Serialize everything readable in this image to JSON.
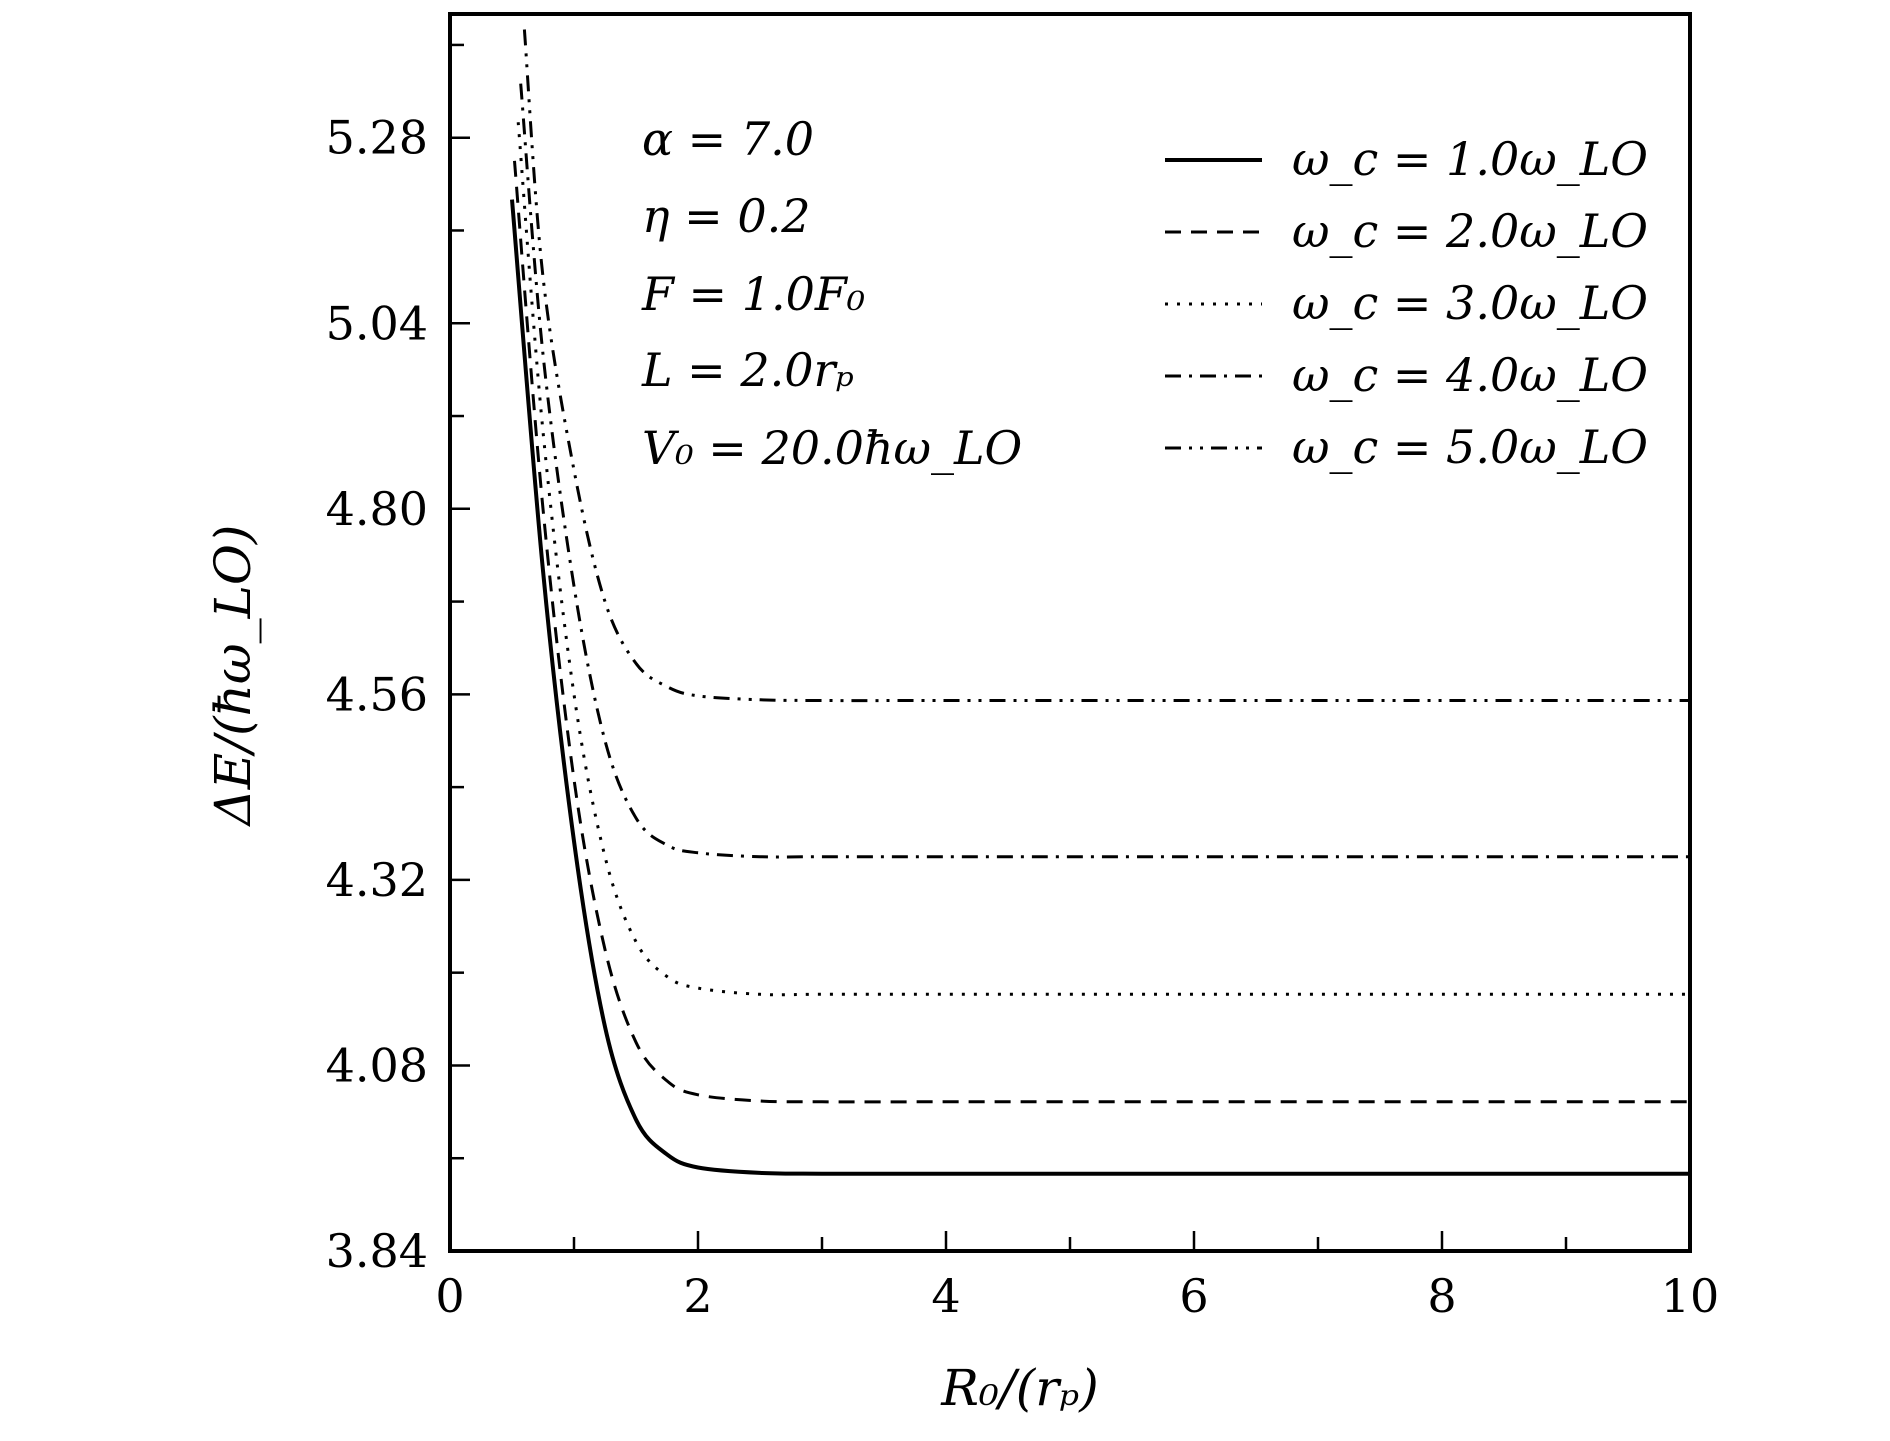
{
  "chart_data": {
    "type": "line",
    "xlabel": "R₀/(rₚ)",
    "ylabel": "ΔE/(ħω_LO)",
    "xlim": [
      0,
      10
    ],
    "ylim": [
      3.84,
      5.44
    ],
    "x_ticks": [
      0,
      2,
      4,
      6,
      8,
      10
    ],
    "y_ticks": [
      3.84,
      4.08,
      4.32,
      4.56,
      4.8,
      5.04,
      5.28
    ],
    "x_tick_labels": [
      "0",
      "2",
      "4",
      "6",
      "8",
      "10"
    ],
    "y_tick_labels": [
      "3.84",
      "4.08",
      "4.32",
      "4.56",
      "4.80",
      "5.04",
      "5.28"
    ],
    "grid": false,
    "legend_position": "top-right",
    "annotations": [
      "α = 7.0",
      "η = 0.2",
      "F = 1.0F₀",
      "L = 2.0rₚ",
      "V₀ = 20.0ħω_LO"
    ],
    "series": [
      {
        "name": "ω_c = 1.0ω_LO",
        "style": "solid",
        "x": [
          0.5,
          0.75,
          1.0,
          1.25,
          1.5,
          1.75,
          2.0,
          2.5,
          3.0,
          4.0,
          6.0,
          8.0,
          10.0
        ],
        "y": [
          5.2,
          4.72,
          4.37,
          4.13,
          4.01,
          3.965,
          3.948,
          3.941,
          3.94,
          3.94,
          3.94,
          3.94,
          3.94
        ]
      },
      {
        "name": "ω_c = 2.0ω_LO",
        "style": "dashed",
        "x": [
          0.52,
          0.75,
          1.0,
          1.25,
          1.5,
          1.75,
          2.0,
          2.5,
          3.0,
          4.0,
          6.0,
          8.0,
          10.0
        ],
        "y": [
          5.25,
          4.8,
          4.45,
          4.23,
          4.11,
          4.06,
          4.042,
          4.034,
          4.033,
          4.033,
          4.033,
          4.033,
          4.033
        ]
      },
      {
        "name": "ω_c = 3.0ω_LO",
        "style": "dotted",
        "x": [
          0.55,
          0.75,
          1.0,
          1.25,
          1.5,
          1.75,
          2.0,
          2.5,
          3.0,
          4.0,
          6.0,
          8.0,
          10.0
        ],
        "y": [
          5.3,
          4.9,
          4.56,
          4.35,
          4.24,
          4.195,
          4.18,
          4.172,
          4.172,
          4.172,
          4.172,
          4.172,
          4.172
        ]
      },
      {
        "name": "ω_c = 4.0ω_LO",
        "style": "dashdot",
        "x": [
          0.57,
          0.75,
          1.0,
          1.25,
          1.5,
          1.75,
          2.0,
          2.5,
          3.0,
          4.0,
          6.0,
          8.0,
          10.0
        ],
        "y": [
          5.35,
          5.0,
          4.7,
          4.5,
          4.4,
          4.365,
          4.355,
          4.35,
          4.35,
          4.35,
          4.35,
          4.35,
          4.35
        ]
      },
      {
        "name": "ω_c = 5.0ω_LO",
        "style": "dashdotdot",
        "x": [
          0.6,
          0.75,
          1.0,
          1.25,
          1.5,
          1.75,
          2.0,
          2.5,
          3.0,
          4.0,
          6.0,
          8.0,
          10.0
        ],
        "y": [
          5.42,
          5.1,
          4.85,
          4.68,
          4.6,
          4.57,
          4.558,
          4.553,
          4.552,
          4.552,
          4.552,
          4.552,
          4.552
        ]
      }
    ]
  }
}
